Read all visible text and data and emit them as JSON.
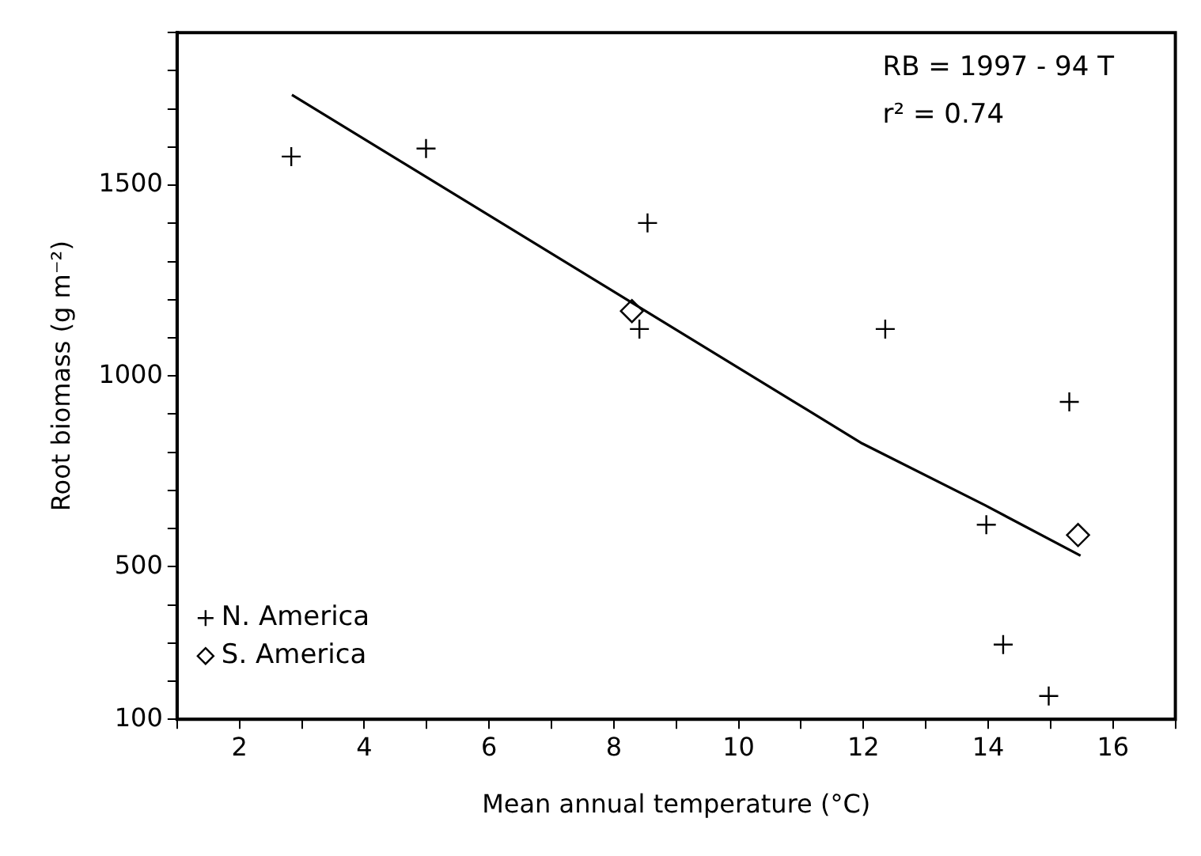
{
  "chart_data": {
    "type": "scatter",
    "xlabel": "Mean annual temperature (°C)",
    "ylabel": "Root biomass (g m⁻²)",
    "xlim": [
      1,
      17
    ],
    "ylim": [
      100,
      1900
    ],
    "xticks": [
      {
        "value": 1,
        "label": null
      },
      2,
      {
        "value": 3,
        "label": null
      },
      4,
      {
        "value": 5,
        "label": null
      },
      6,
      {
        "value": 7,
        "label": null
      },
      8,
      {
        "value": 9,
        "label": null
      },
      10,
      {
        "value": 11,
        "label": null
      },
      12,
      {
        "value": 13,
        "label": null
      },
      14,
      {
        "value": 15,
        "label": null
      },
      16,
      {
        "value": 17,
        "label": null
      }
    ],
    "yticks": [
      100,
      {
        "value": 200,
        "label": null
      },
      {
        "value": 300,
        "label": null
      },
      {
        "value": 400,
        "label": null
      },
      500,
      {
        "value": 600,
        "label": null
      },
      {
        "value": 700,
        "label": null
      },
      {
        "value": 800,
        "label": null
      },
      {
        "value": 900,
        "label": null
      },
      1000,
      {
        "value": 1100,
        "label": null
      },
      {
        "value": 1200,
        "label": null
      },
      {
        "value": 1300,
        "label": null
      },
      {
        "value": 1400,
        "label": null
      },
      1500,
      {
        "value": 1600,
        "label": null
      },
      {
        "value": 1700,
        "label": null
      },
      {
        "value": 1800,
        "label": null
      },
      {
        "value": 1900,
        "label": null
      }
    ],
    "series": [
      {
        "name": "N. America",
        "marker": "cross",
        "color": "#000000",
        "x": [
          2.83,
          4.99,
          8.54,
          8.41,
          12.35,
          15.3,
          13.97,
          14.24,
          14.97
        ],
        "values": [
          1575,
          1596,
          1401,
          1123,
          1123,
          932,
          610,
          296,
          161
        ]
      },
      {
        "name": "S. America",
        "marker": "diamond",
        "color": "#000000",
        "x": [
          8.29,
          15.44
        ],
        "values": [
          1170,
          583
        ]
      },
      {
        "type": "line",
        "marker": "none",
        "color": "#000000",
        "x": [
          2.84,
          8.29,
          11.98,
          13.95,
          15.48
        ],
        "values": [
          1737,
          1192,
          823,
          661,
          529
        ]
      }
    ],
    "annotations": [
      "RB = 1997 - 94 T",
      "r² = 0.74"
    ],
    "legend": "bottom left"
  }
}
